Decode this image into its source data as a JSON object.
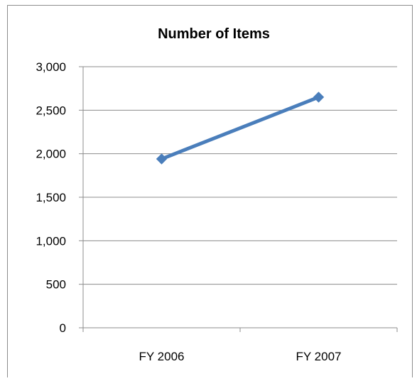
{
  "chart_data": {
    "type": "line",
    "title": "Number of Items",
    "categories": [
      "FY 2006",
      "FY 2007"
    ],
    "series": [
      {
        "values": [
          1940,
          2650
        ],
        "color": "#4a7ebb",
        "marker": "diamond"
      }
    ],
    "ylim": [
      0,
      3000
    ],
    "yticks": [
      0,
      500,
      1000,
      1500,
      2000,
      2500,
      3000
    ],
    "ytick_labels": [
      "0",
      "500",
      "1,000",
      "1,500",
      "2,000",
      "2,500",
      "3,000"
    ],
    "grid": true,
    "legend": "none"
  }
}
